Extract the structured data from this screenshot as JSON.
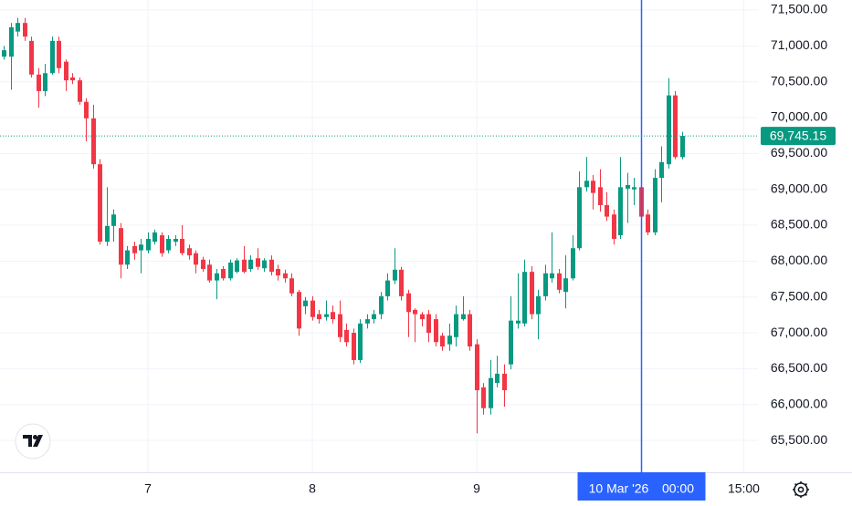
{
  "chart_data": {
    "type": "candlestick",
    "up_color": "#089981",
    "down_color": "#f23645",
    "grid": true,
    "xlim": [
      2.4,
      113.07
    ],
    "xticks": [
      {
        "value": 24,
        "label": "7"
      },
      {
        "value": 48,
        "label": "8"
      },
      {
        "value": 72,
        "label": "9"
      },
      {
        "value": 111,
        "label": "15:00"
      }
    ],
    "ylim": [
      65056,
      71640
    ],
    "yticks": [
      {
        "value": 65500,
        "label": "65,500.00"
      },
      {
        "value": 66000,
        "label": "66,000.00"
      },
      {
        "value": 66500,
        "label": "66,500.00"
      },
      {
        "value": 67000,
        "label": "67,000.00"
      },
      {
        "value": 67500,
        "label": "67,500.00"
      },
      {
        "value": 68000,
        "label": "68,000.00"
      },
      {
        "value": 68500,
        "label": "68,500.00"
      },
      {
        "value": 69000,
        "label": "69,000.00"
      },
      {
        "value": 69500,
        "label": "69,500.00"
      },
      {
        "value": 70000,
        "label": "70,000.00"
      },
      {
        "value": 70500,
        "label": "70,500.00"
      },
      {
        "value": 71000,
        "label": "71,000.00"
      },
      {
        "value": 71500,
        "label": "71,500.00"
      }
    ],
    "crosshair": {
      "x": 96,
      "date_label": "10 Mar '26",
      "time_label": "00:00",
      "color": "#2962ff"
    },
    "last_price": {
      "value": 69745.15,
      "label": "69,745.15"
    },
    "x": [
      3,
      4,
      5,
      6,
      7,
      8,
      9,
      10,
      11,
      12,
      13,
      14,
      15,
      16,
      17,
      18,
      19,
      20,
      21,
      22,
      23,
      24,
      25,
      26,
      27,
      28,
      29,
      30,
      31,
      32,
      33,
      34,
      35,
      36,
      37,
      38,
      39,
      40,
      41,
      42,
      43,
      44,
      45,
      46,
      47,
      48,
      49,
      50,
      51,
      52,
      53,
      54,
      55,
      56,
      57,
      58,
      59,
      60,
      61,
      62,
      63,
      64,
      65,
      66,
      67,
      68,
      69,
      70,
      71,
      72,
      73,
      74,
      75,
      76,
      77,
      78,
      79,
      80,
      81,
      82,
      83,
      84,
      85,
      86,
      87,
      88,
      89,
      90,
      91,
      92,
      93,
      94,
      95,
      96,
      97,
      98,
      99,
      100,
      101,
      102
    ],
    "open": [
      70850,
      70850,
      71200,
      71320,
      71070,
      70600,
      70370,
      70620,
      71070,
      70780,
      70560,
      70520,
      70220,
      69990,
      69350,
      68270,
      68490,
      68460,
      67950,
      68210,
      68150,
      68150,
      68270,
      68360,
      68150,
      68270,
      68310,
      68180,
      68110,
      68020,
      67950,
      67730,
      67890,
      67760,
      67850,
      68020,
      67890,
      68040,
      67900,
      68020,
      67890,
      67830,
      67760,
      67570,
      67370,
      67450,
      67260,
      67220,
      67290,
      67260,
      67040,
      67000,
      66620,
      67130,
      67190,
      67260,
      67510,
      67730,
      67880,
      67550,
      67320,
      67260,
      67260,
      67190,
      66960,
      66840,
      66940,
      67190,
      67260,
      66840,
      66240,
      65950,
      66300,
      66430,
      66560,
      67130,
      67130,
      67850,
      67260,
      67510,
      67760,
      67830,
      67570,
      67760,
      68180,
      69030,
      69120,
      69030,
      68780,
      68650,
      68360,
      69010,
      69000,
      69030,
      68650,
      68400,
      69160,
      69350,
      70310,
      69450
    ],
    "high": [
      71000,
      71320,
      71390,
      71390,
      71130,
      70690,
      70750,
      71130,
      71130,
      70810,
      70620,
      70560,
      70270,
      70180,
      69420,
      69030,
      68720,
      68530,
      68210,
      68270,
      68310,
      68400,
      68440,
      68400,
      68360,
      68360,
      68500,
      68230,
      68150,
      68060,
      68020,
      67890,
      67930,
      68020,
      68040,
      68210,
      68080,
      68180,
      68040,
      68080,
      67950,
      67880,
      67830,
      67600,
      67500,
      67510,
      67320,
      67450,
      67380,
      67450,
      67130,
      67060,
      67190,
      67260,
      67320,
      67570,
      67830,
      68180,
      67920,
      67600,
      67340,
      67290,
      67320,
      67260,
      67000,
      67130,
      67380,
      67510,
      67320,
      66910,
      66300,
      66620,
      66680,
      66560,
      67510,
      67830,
      68020,
      67930,
      67600,
      67950,
      68400,
      67890,
      68080,
      68360,
      69250,
      69450,
      69200,
      69280,
      68960,
      68720,
      69450,
      69230,
      69160,
      69100,
      68720,
      69280,
      69600,
      70550,
      70370,
      69800
    ],
    "low": [
      70810,
      70390,
      71130,
      71070,
      70560,
      70140,
      70300,
      70600,
      70620,
      70370,
      70470,
      70180,
      69670,
      69290,
      68230,
      68210,
      68270,
      67760,
      67890,
      68020,
      67830,
      68110,
      68230,
      68060,
      68110,
      68210,
      68080,
      68020,
      67830,
      67850,
      67700,
      67470,
      67730,
      67730,
      67830,
      67830,
      67850,
      67880,
      67850,
      67800,
      67730,
      67700,
      67510,
      66960,
      67260,
      67170,
      67130,
      67170,
      67130,
      66870,
      66810,
      66560,
      66580,
      67060,
      67130,
      67190,
      67450,
      67680,
      67450,
      66940,
      66870,
      67090,
      66870,
      66810,
      66750,
      66750,
      66810,
      67170,
      66750,
      65600,
      65860,
      65860,
      66240,
      65970,
      66490,
      67060,
      67090,
      67190,
      66910,
      67450,
      67700,
      67550,
      67340,
      67730,
      68150,
      68970,
      68720,
      68690,
      68560,
      68230,
      68310,
      68530,
      68780,
      68560,
      68360,
      68360,
      68820,
      69290,
      69420,
      69420
    ],
    "close": [
      70940,
      71260,
      71320,
      71130,
      70600,
      70370,
      70620,
      71070,
      70690,
      70520,
      70520,
      70220,
      69990,
      69350,
      68270,
      68490,
      68650,
      67950,
      68150,
      68110,
      68230,
      68310,
      68400,
      68110,
      68310,
      68310,
      68110,
      68080,
      67950,
      67890,
      67730,
      67830,
      67760,
      67980,
      68010,
      67850,
      68020,
      67920,
      68010,
      67850,
      67800,
      67760,
      67550,
      67060,
      67450,
      67220,
      67190,
      67260,
      67190,
      66940,
      66870,
      66620,
      67130,
      67190,
      67260,
      67510,
      67730,
      67880,
      67510,
      67290,
      67260,
      67190,
      67000,
      66870,
      66810,
      66960,
      67260,
      67260,
      66810,
      66200,
      65950,
      66370,
      66430,
      66200,
      67170,
      67170,
      67850,
      67260,
      67510,
      67830,
      67830,
      67600,
      67760,
      68180,
      69030,
      69120,
      68950,
      68780,
      68620,
      68310,
      69030,
      69060,
      69030,
      68620,
      68400,
      69160,
      69380,
      70310,
      69450,
      69745.15
    ]
  }
}
